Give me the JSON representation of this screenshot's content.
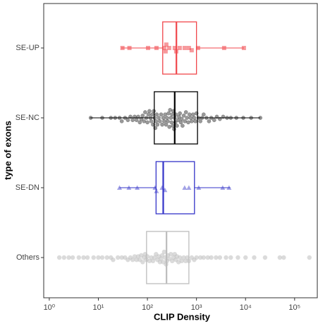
{
  "chart_data": {
    "type": "box-swarm",
    "x_label": "CLIP Density",
    "y_label": "type of exons",
    "categories": [
      "SE-UP",
      "SE-NC",
      "SE-DN",
      "Others"
    ],
    "xscale": "log",
    "xlim": [
      0.77,
      290000
    ],
    "xticks": [
      {
        "value": 1,
        "label": "10⁰"
      },
      {
        "value": 10,
        "label": "10¹"
      },
      {
        "value": 100,
        "label": "10²"
      },
      {
        "value": 1000,
        "label": "10³"
      },
      {
        "value": 10000,
        "label": "10⁴"
      },
      {
        "value": 100000,
        "label": "10⁵"
      }
    ],
    "series": [
      {
        "color": "#f0474c",
        "marker": "square",
        "box": {
          "whisker_low": 29,
          "q1": 205,
          "median": 390,
          "q3": 1000,
          "whisker_high": 9300
        },
        "points": [
          31,
          43,
          103,
          153,
          220,
          235,
          243,
          277,
          361,
          386,
          455,
          574,
          700,
          798,
          1076,
          3660,
          9250
        ]
      },
      {
        "color": "#000000",
        "marker": "circle",
        "box": {
          "whisker_low": 6.8,
          "q1": 138,
          "median": 360,
          "q3": 1050,
          "whisker_high": 20000
        },
        "points": [
          7,
          12,
          18,
          22,
          27,
          30,
          35,
          40,
          45,
          50,
          55,
          60,
          65,
          70,
          75,
          80,
          85,
          90,
          95,
          100,
          105,
          110,
          115,
          120,
          125,
          130,
          135,
          140,
          145,
          150,
          155,
          160,
          170,
          180,
          190,
          200,
          210,
          220,
          230,
          240,
          250,
          260,
          270,
          280,
          290,
          300,
          310,
          320,
          330,
          340,
          350,
          360,
          370,
          380,
          400,
          420,
          440,
          460,
          480,
          500,
          520,
          550,
          580,
          610,
          640,
          680,
          720,
          760,
          800,
          850,
          900,
          950,
          1000,
          1100,
          1200,
          1300,
          1400,
          1600,
          1800,
          2000,
          2300,
          2600,
          3000,
          3500,
          4200,
          5000,
          6500,
          9000,
          13000,
          20000
        ]
      },
      {
        "color": "#3434c8",
        "marker": "triangle",
        "box": {
          "whisker_low": 27,
          "q1": 150,
          "median": 210,
          "q3": 910,
          "whisker_high": 4900
        },
        "points": [
          27,
          42,
          62,
          143,
          153,
          199,
          227,
          574,
          700,
          1112,
          3420,
          4610
        ]
      },
      {
        "color": "#bdbdbd",
        "marker": "circle",
        "box": {
          "q1": 96,
          "median": 245,
          "q3": 700
        },
        "points": [
          1.6,
          2,
          2.5,
          3,
          4,
          5,
          6,
          8,
          10,
          12,
          15,
          18,
          20,
          25,
          30,
          35,
          40,
          45,
          50,
          55,
          60,
          65,
          70,
          75,
          80,
          85,
          90,
          95,
          100,
          110,
          120,
          130,
          140,
          150,
          160,
          170,
          180,
          190,
          200,
          210,
          220,
          230,
          240,
          250,
          260,
          280,
          300,
          320,
          340,
          360,
          380,
          400,
          430,
          460,
          500,
          550,
          600,
          650,
          700,
          800,
          900,
          1000,
          1200,
          1400,
          1700,
          2000,
          2500,
          3000,
          4000,
          5000,
          7000,
          10000,
          15000,
          25000,
          50000,
          60000,
          200000
        ]
      }
    ]
  }
}
